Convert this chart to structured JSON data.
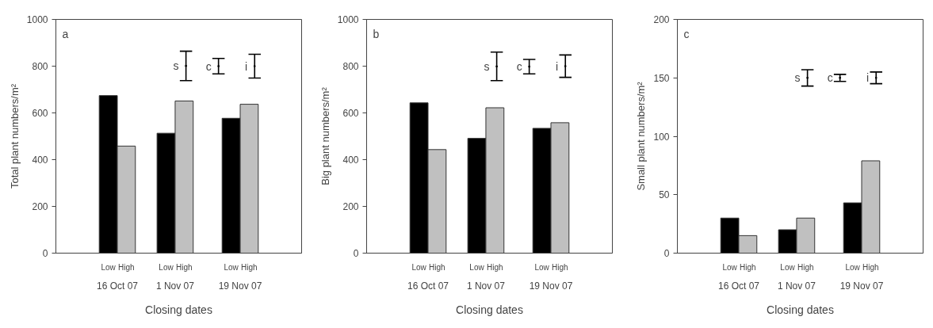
{
  "chart_data": [
    {
      "type": "bar",
      "annotations": [
        "a"
      ],
      "xlabel": "Closing dates",
      "ylabel": "Total plant numbers/m²",
      "x": [
        "2007-10-16",
        "2007-11-01",
        "2007-11-19"
      ],
      "xlim": [
        "2007-09-29",
        "2007-12-06"
      ],
      "xticks": [
        {
          "value": "2007-10-16",
          "label": "16 Oct 07"
        },
        {
          "value": "2007-11-01",
          "label": "1 Nov 07"
        },
        {
          "value": "2007-11-19",
          "label": "19 Nov 07"
        }
      ],
      "ylim": [
        0,
        1000
      ],
      "yticks": [
        0,
        200,
        400,
        600,
        800,
        1000
      ],
      "grid": false,
      "series": [
        {
          "name": "Low",
          "color": "#000000",
          "values": [
            674,
            513,
            577
          ]
        },
        {
          "name": "High",
          "color": "#c0c0c0",
          "values": [
            458,
            651,
            637
          ]
        },
        {
          "name": "s",
          "type": "scatter",
          "color": "#000000",
          "x": [
            "2007-11-04"
          ],
          "values": [
            801
          ],
          "errors": [
            63
          ]
        },
        {
          "name": "c",
          "type": "scatter",
          "color": "#000000",
          "x": [
            "2007-11-13"
          ],
          "values": [
            800
          ],
          "errors": [
            33
          ]
        },
        {
          "name": "i",
          "type": "scatter",
          "color": "#000000",
          "x": [
            "2007-11-23"
          ],
          "values": [
            800
          ],
          "errors": [
            51
          ]
        }
      ]
    },
    {
      "type": "bar",
      "annotations": [
        "b"
      ],
      "xlabel": "Closing dates",
      "ylabel": "Big plant numbers/m²",
      "x": [
        "2007-10-16",
        "2007-11-01",
        "2007-11-19"
      ],
      "xlim": [
        "2007-09-29",
        "2007-12-06"
      ],
      "xticks": [
        {
          "value": "2007-10-16",
          "label": "16 Oct 07"
        },
        {
          "value": "2007-11-01",
          "label": "1 Nov 07"
        },
        {
          "value": "2007-11-19",
          "label": "19 Nov 07"
        }
      ],
      "ylim": [
        0,
        1000
      ],
      "yticks": [
        0,
        200,
        400,
        600,
        800,
        1000
      ],
      "grid": false,
      "series": [
        {
          "name": "Low",
          "color": "#000000",
          "values": [
            643,
            491,
            534
          ]
        },
        {
          "name": "High",
          "color": "#c0c0c0",
          "values": [
            443,
            622,
            558
          ]
        },
        {
          "name": "s",
          "type": "scatter",
          "color": "#000000",
          "x": [
            "2007-11-04"
          ],
          "values": [
            799
          ],
          "errors": [
            61
          ]
        },
        {
          "name": "c",
          "type": "scatter",
          "color": "#000000",
          "x": [
            "2007-11-13"
          ],
          "values": [
            798
          ],
          "errors": [
            31
          ]
        },
        {
          "name": "i",
          "type": "scatter",
          "color": "#000000",
          "x": [
            "2007-11-23"
          ],
          "values": [
            800
          ],
          "errors": [
            48
          ]
        }
      ]
    },
    {
      "type": "bar",
      "annotations": [
        "c"
      ],
      "xlabel": "Closing dates",
      "ylabel": "Small plant numbers/m²",
      "x": [
        "2007-10-16",
        "2007-11-01",
        "2007-11-19"
      ],
      "xlim": [
        "2007-09-29",
        "2007-12-06"
      ],
      "xticks": [
        {
          "value": "2007-10-16",
          "label": "16 Oct 07"
        },
        {
          "value": "2007-11-01",
          "label": "1 Nov 07"
        },
        {
          "value": "2007-11-19",
          "label": "19 Nov 07"
        }
      ],
      "ylim": [
        0,
        200
      ],
      "yticks": [
        0,
        50,
        100,
        150,
        200
      ],
      "grid": false,
      "series": [
        {
          "name": "Low",
          "color": "#000000",
          "values": [
            30,
            20,
            43
          ]
        },
        {
          "name": "High",
          "color": "#c0c0c0",
          "values": [
            15,
            30,
            79
          ]
        },
        {
          "name": "s",
          "type": "scatter",
          "color": "#000000",
          "x": [
            "2007-11-04"
          ],
          "values": [
            150
          ],
          "errors": [
            7
          ]
        },
        {
          "name": "c",
          "type": "scatter",
          "color": "#000000",
          "x": [
            "2007-11-13"
          ],
          "values": [
            150
          ],
          "errors": [
            3
          ]
        },
        {
          "name": "i",
          "type": "scatter",
          "color": "#000000",
          "x": [
            "2007-11-23"
          ],
          "values": [
            150
          ],
          "errors": [
            5
          ]
        }
      ]
    }
  ]
}
